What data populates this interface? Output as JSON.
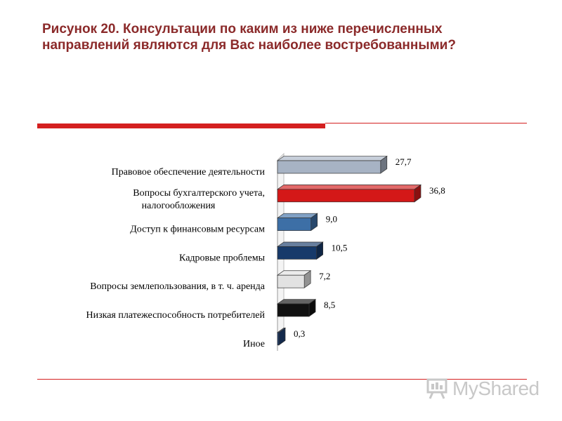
{
  "title": {
    "line1": "Рисунок 20. Консультации по каким из ниже перечисленных",
    "line2": "направлений являются для Вас наиболее востребованными?"
  },
  "chart_data": {
    "type": "bar",
    "orientation": "horizontal",
    "style": "3d",
    "categories": [
      [
        "Правовое обеспечение деятельности"
      ],
      [
        "Вопросы бухгалтерского учета,",
        "налогообложения"
      ],
      [
        "Доступ к финансовым ресурсам"
      ],
      [
        "Кадровые проблемы"
      ],
      [
        "Вопросы землепользования, в т. ч. аренда"
      ],
      [
        "Низкая платежеспособность потребителей"
      ],
      [
        "Иное"
      ]
    ],
    "values": [
      27.7,
      36.8,
      9.0,
      10.5,
      7.2,
      8.5,
      0.3
    ],
    "value_labels": [
      "27,7",
      "36,8",
      "9,0",
      "10,5",
      "7,2",
      "8,5",
      "0,3"
    ],
    "colors": [
      "#a7b3c4",
      "#d41818",
      "#3d6fa6",
      "#173a6a",
      "#e2e2e2",
      "#111111",
      "#1d3f73"
    ],
    "xlim": [
      0,
      40
    ],
    "grid": false,
    "legend": "none"
  },
  "watermark": {
    "text": "MyShared"
  }
}
